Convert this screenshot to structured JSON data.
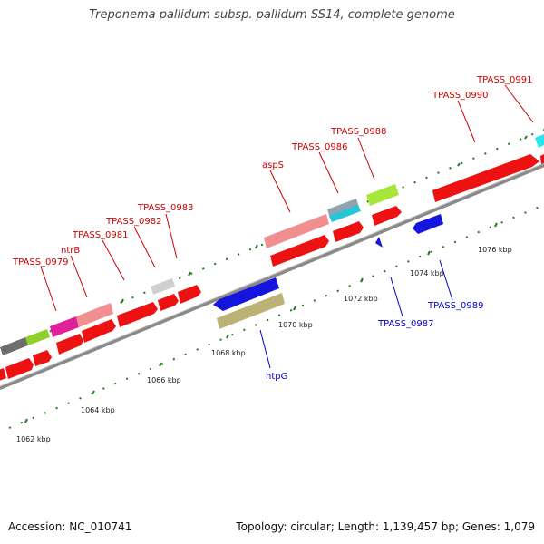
{
  "title": "Treponema pallidum subsp. pallidum SS14, complete genome",
  "footer": {
    "accession": "Accession: NC_010741",
    "summary": "Topology: circular; Length: 1,139,457 bp; Genes: 1,079"
  },
  "colors": {
    "forward_label": "#cc0000",
    "reverse_label": "#0000cc",
    "backbone": "#888888",
    "tick": "#1f7a1f"
  },
  "axis_labels": [
    "1062 kbp",
    "1064 kbp",
    "1066 kbp",
    "1068 kbp",
    "1070 kbp",
    "1072 kbp",
    "1074 kbp",
    "1076 kbp"
  ],
  "forward_labels": [
    "TPASS_0979",
    "ntrB",
    "TPASS_0981",
    "TPASS_0982",
    "TPASS_0983",
    "aspS",
    "TPASS_0986",
    "TPASS_0988",
    "TPASS_0990",
    "TPASS_0991"
  ],
  "reverse_labels": [
    "htpG",
    "TPASS_0987",
    "TPASS_0989"
  ]
}
